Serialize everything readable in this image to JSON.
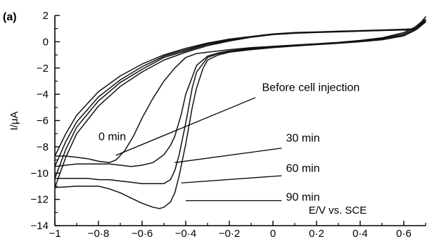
{
  "chart_data": {
    "type": "line",
    "panel_label": "(a)",
    "xlabel": "E/V vs. SCE",
    "ylabel": "I/μA",
    "xlim": [
      -1.0,
      0.7
    ],
    "ylim": [
      -14,
      2
    ],
    "x_ticks": [
      -1,
      -0.8,
      -0.6,
      -0.4,
      -0.2,
      0,
      0.2,
      0.4,
      0.6
    ],
    "x_tick_labels": [
      "−1",
      "−0·8",
      "−0·6",
      "−0·4",
      "−0·2",
      "0",
      "0·2",
      "0·4",
      "0·6"
    ],
    "y_ticks": [
      2,
      0,
      -2,
      -4,
      -6,
      -8,
      -10,
      -12,
      -14
    ],
    "y_tick_labels": [
      "2",
      "0",
      "−2",
      "−4",
      "−6",
      "−8",
      "−10",
      "−12",
      "−14"
    ],
    "grid": false,
    "series": [
      {
        "x": [
          -1.0,
          -0.95,
          -0.9,
          -0.85,
          -0.8,
          -0.75,
          -0.72,
          -0.68,
          -0.64,
          -0.6,
          -0.55,
          -0.5,
          -0.45,
          -0.4,
          -0.35,
          -0.3,
          -0.25,
          -0.2,
          -0.1,
          0.0,
          0.1,
          0.2,
          0.3,
          0.4,
          0.5,
          0.6,
          0.65,
          0.68,
          0.7,
          0.66,
          0.6,
          0.5,
          0.4,
          0.3,
          0.2,
          0.1,
          0.0,
          -0.1,
          -0.2,
          -0.3,
          -0.4,
          -0.5,
          -0.6,
          -0.7,
          -0.8,
          -0.9,
          -0.95,
          -1.0
        ],
        "y": [
          -8.7,
          -8.7,
          -8.8,
          -8.9,
          -9.1,
          -9.2,
          -9.0,
          -8.3,
          -7.2,
          -5.8,
          -4.3,
          -3.0,
          -2.0,
          -1.2,
          -0.9,
          -0.8,
          -0.7,
          -0.6,
          -0.45,
          -0.35,
          -0.25,
          -0.15,
          -0.05,
          0.1,
          0.3,
          0.7,
          1.1,
          1.5,
          1.9,
          1.0,
          0.95,
          0.9,
          0.85,
          0.8,
          0.75,
          0.7,
          0.6,
          0.4,
          0.2,
          -0.1,
          -0.5,
          -1.0,
          -1.7,
          -2.6,
          -3.8,
          -5.6,
          -7.0,
          -8.7
        ]
      },
      {
        "x": [
          -1.0,
          -0.95,
          -0.9,
          -0.85,
          -0.8,
          -0.75,
          -0.7,
          -0.65,
          -0.6,
          -0.55,
          -0.5,
          -0.47,
          -0.45,
          -0.42,
          -0.4,
          -0.35,
          -0.3,
          -0.25,
          -0.2,
          -0.1,
          0.0,
          0.1,
          0.2,
          0.3,
          0.4,
          0.5,
          0.6,
          0.65,
          0.68,
          0.7,
          0.66,
          0.6,
          0.5,
          0.4,
          0.3,
          0.2,
          0.1,
          0.0,
          -0.1,
          -0.2,
          -0.3,
          -0.4,
          -0.5,
          -0.6,
          -0.7,
          -0.8,
          -0.9,
          -0.95,
          -1.0
        ],
        "y": [
          -9.5,
          -9.4,
          -9.3,
          -9.3,
          -9.3,
          -9.3,
          -9.4,
          -9.5,
          -9.4,
          -9.2,
          -8.6,
          -7.9,
          -7.2,
          -5.5,
          -4.0,
          -1.8,
          -1.1,
          -0.85,
          -0.7,
          -0.5,
          -0.38,
          -0.28,
          -0.18,
          -0.08,
          0.05,
          0.25,
          0.6,
          1.0,
          1.4,
          1.7,
          0.95,
          0.9,
          0.88,
          0.83,
          0.78,
          0.73,
          0.68,
          0.58,
          0.38,
          0.15,
          -0.15,
          -0.6,
          -1.1,
          -1.9,
          -2.9,
          -4.2,
          -6.1,
          -7.6,
          -9.5
        ]
      },
      {
        "x": [
          -1.0,
          -0.95,
          -0.9,
          -0.85,
          -0.8,
          -0.75,
          -0.7,
          -0.65,
          -0.6,
          -0.55,
          -0.5,
          -0.47,
          -0.45,
          -0.43,
          -0.4,
          -0.37,
          -0.35,
          -0.3,
          -0.25,
          -0.2,
          -0.1,
          0.0,
          0.1,
          0.2,
          0.3,
          0.4,
          0.5,
          0.6,
          0.65,
          0.68,
          0.7,
          0.66,
          0.6,
          0.5,
          0.4,
          0.3,
          0.2,
          0.1,
          0.0,
          -0.1,
          -0.2,
          -0.3,
          -0.4,
          -0.5,
          -0.6,
          -0.7,
          -0.8,
          -0.9,
          -0.95,
          -1.0
        ],
        "y": [
          -10.4,
          -10.4,
          -10.4,
          -10.4,
          -10.5,
          -10.5,
          -10.6,
          -10.7,
          -10.8,
          -10.8,
          -10.8,
          -10.5,
          -9.8,
          -8.6,
          -6.2,
          -3.5,
          -2.3,
          -1.2,
          -0.9,
          -0.75,
          -0.55,
          -0.42,
          -0.3,
          -0.2,
          -0.1,
          0.02,
          0.2,
          0.5,
          0.9,
          1.3,
          1.6,
          0.95,
          0.9,
          0.86,
          0.82,
          0.77,
          0.72,
          0.66,
          0.56,
          0.36,
          0.1,
          -0.2,
          -0.7,
          -1.2,
          -2.1,
          -3.1,
          -4.5,
          -6.5,
          -8.2,
          -10.4
        ]
      },
      {
        "x": [
          -1.0,
          -0.95,
          -0.9,
          -0.85,
          -0.8,
          -0.75,
          -0.7,
          -0.65,
          -0.6,
          -0.55,
          -0.52,
          -0.5,
          -0.47,
          -0.45,
          -0.43,
          -0.4,
          -0.37,
          -0.35,
          -0.32,
          -0.3,
          -0.25,
          -0.2,
          -0.1,
          0.0,
          0.1,
          0.2,
          0.3,
          0.4,
          0.5,
          0.6,
          0.65,
          0.68,
          0.7,
          0.66,
          0.6,
          0.5,
          0.4,
          0.3,
          0.2,
          0.1,
          0.0,
          -0.1,
          -0.2,
          -0.3,
          -0.4,
          -0.5,
          -0.6,
          -0.7,
          -0.8,
          -0.9,
          -0.95,
          -1.0
        ],
        "y": [
          -11.1,
          -11.05,
          -11.0,
          -11.0,
          -11.0,
          -11.2,
          -11.5,
          -11.9,
          -12.3,
          -12.6,
          -12.7,
          -12.6,
          -12.2,
          -11.5,
          -10.2,
          -7.8,
          -5.0,
          -3.5,
          -2.0,
          -1.4,
          -1.0,
          -0.8,
          -0.6,
          -0.45,
          -0.33,
          -0.22,
          -0.12,
          0.0,
          0.15,
          0.45,
          0.85,
          1.25,
          1.5,
          0.95,
          0.9,
          0.85,
          0.8,
          0.75,
          0.7,
          0.64,
          0.54,
          0.34,
          0.05,
          -0.3,
          -0.8,
          -1.4,
          -2.3,
          -3.4,
          -4.9,
          -7.0,
          -8.8,
          -11.1
        ]
      }
    ],
    "annotations": [
      {
        "text": "Before cell injection",
        "text_x": -0.05,
        "text_y": -3.75,
        "line_from": [
          -0.08,
          -4.25
        ],
        "line_to": [
          -0.72,
          -8.65
        ]
      },
      {
        "text": "0 min",
        "text_x": -0.8,
        "text_y": -7.5
      },
      {
        "text": "30 min",
        "text_x": 0.06,
        "text_y": -7.6,
        "line_from": [
          0.04,
          -8.1
        ],
        "line_to": [
          -0.45,
          -9.2
        ]
      },
      {
        "text": "60 min",
        "text_x": 0.06,
        "text_y": -9.9,
        "line_from": [
          0.04,
          -10.2
        ],
        "line_to": [
          -0.42,
          -10.75
        ]
      },
      {
        "text": "90 min",
        "text_x": 0.06,
        "text_y": -12.1,
        "line_from": [
          0.04,
          -12.1
        ],
        "line_to": [
          -0.4,
          -12.1
        ]
      }
    ]
  }
}
